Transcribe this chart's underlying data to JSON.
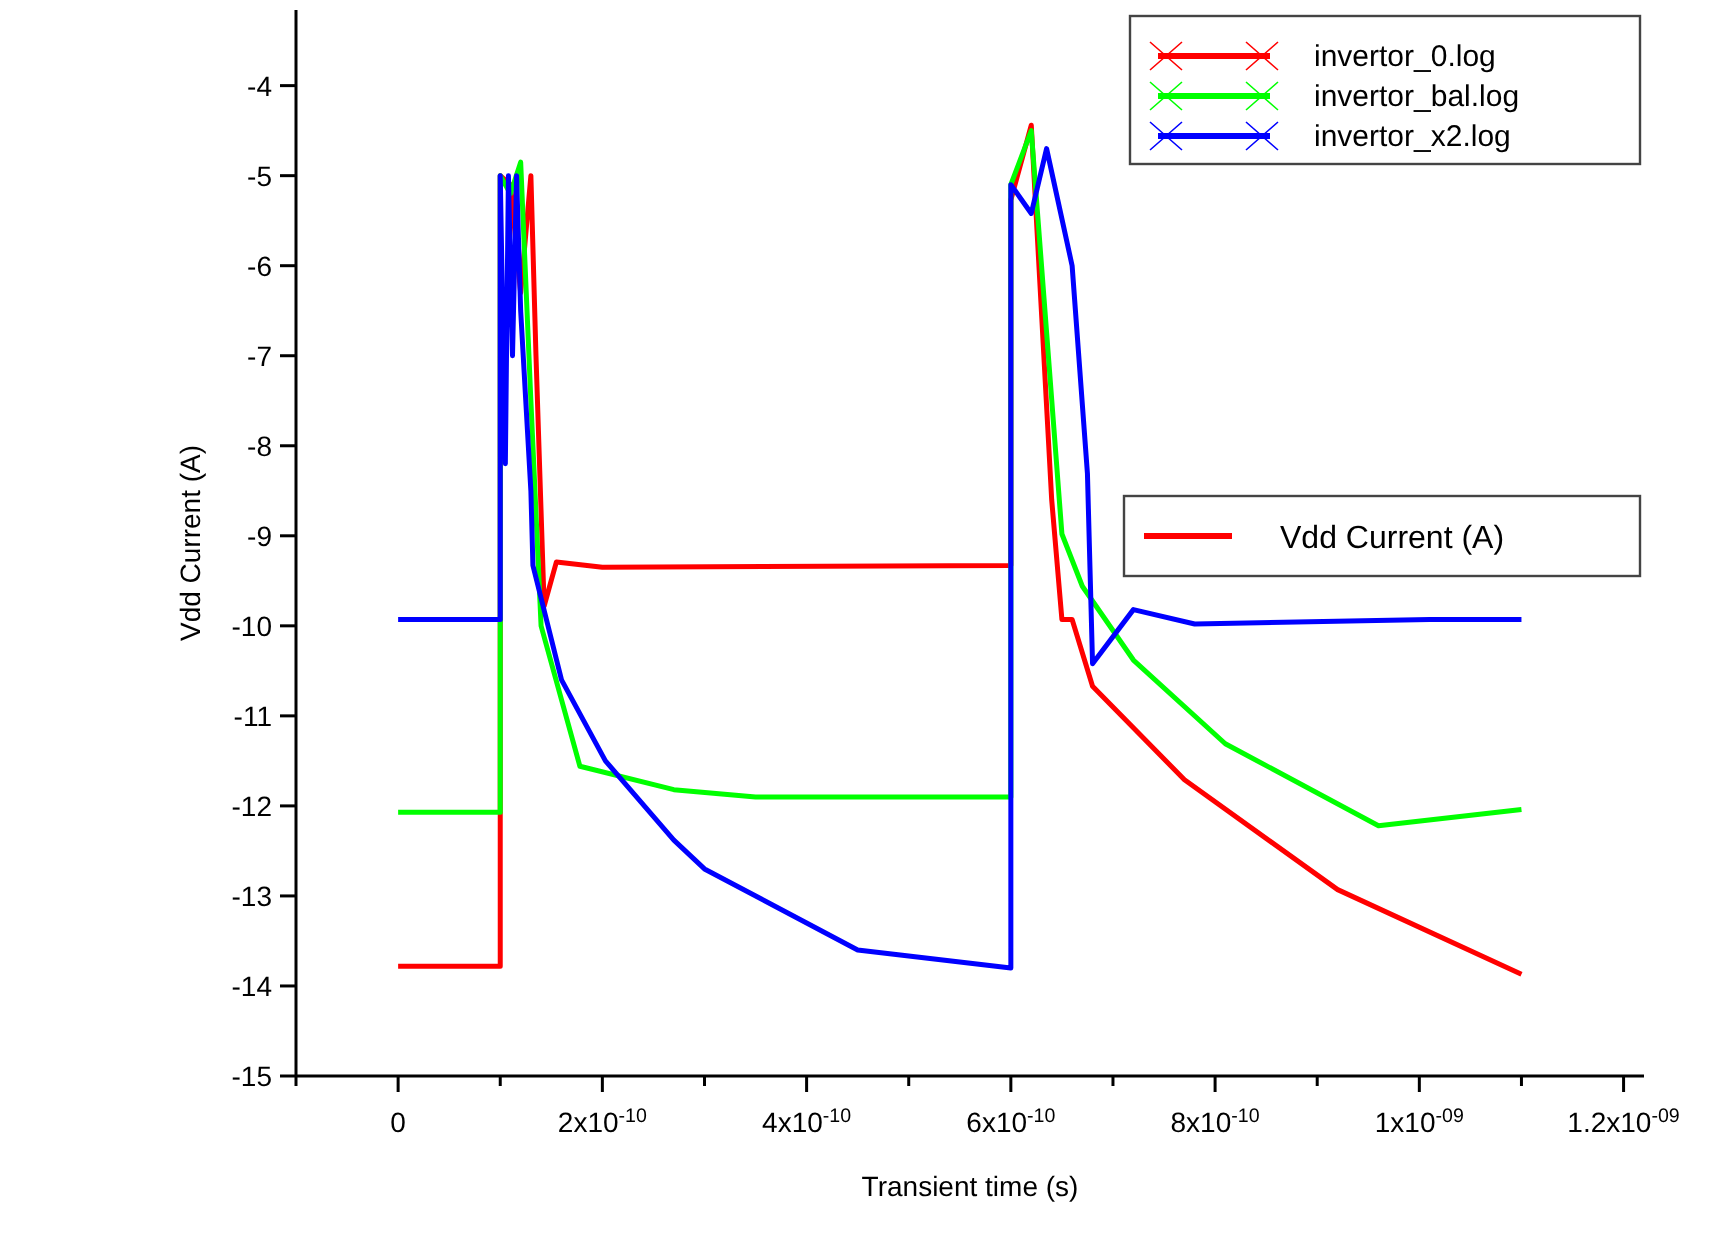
{
  "chart_data": {
    "type": "line",
    "xlabel": "Transient time (s)",
    "ylabel": "Vdd Current (A)",
    "xlim": [
      -1e-10,
      1.22e-09
    ],
    "ylim": [
      -15,
      -3.16
    ],
    "xticks": [
      {
        "value": -1e-10,
        "label": null
      },
      0,
      {
        "value": 1e-10,
        "label": null
      },
      {
        "value": 2e-10,
        "label": "2x10$^{-10}$"
      },
      {
        "value": 3e-10,
        "label": null
      },
      {
        "value": 4e-10,
        "label": "4x10$^{-10}$"
      },
      {
        "value": 5e-10,
        "label": null
      },
      {
        "value": 6e-10,
        "label": "6x10$^{-10}$"
      },
      {
        "value": 7e-10,
        "label": null
      },
      {
        "value": 8e-10,
        "label": "8x10$^{-10}$"
      },
      {
        "value": 9e-10,
        "label": null
      },
      {
        "value": 1e-09,
        "label": "1x10$^{-09}$"
      },
      {
        "value": 1.1e-09,
        "label": null
      },
      {
        "value": 1.2e-09,
        "label": "1.2x10$^{-09}$"
      }
    ],
    "yticks": [
      -15,
      -14,
      -13,
      -12,
      -11,
      -10,
      -9,
      -8,
      -7,
      -6,
      -5,
      -4
    ],
    "grid": false,
    "legend": "top right",
    "annotations": [
      "Vdd Current (A)"
    ],
    "series": [
      {
        "name": "invertor_0.log",
        "color": "#ff0000",
        "x": [
          0,
          1e-10,
          1e-10,
          1.1e-10,
          1.2e-10,
          1.3e-10,
          1.35e-10,
          1.43e-10,
          1.55e-10,
          2e-10,
          6e-10,
          6e-10,
          6.2e-10,
          6.4e-10,
          6.5e-10,
          6.6e-10,
          6.8e-10,
          7.7e-10,
          9.2e-10,
          1.1e-09
        ],
        "values": [
          -13.78,
          -13.78,
          -5.0,
          -5.1,
          -6.3,
          -5.0,
          -7.0,
          -9.78,
          -9.29,
          -9.35,
          -9.33,
          -5.27,
          -4.44,
          -8.6,
          -9.93,
          -9.93,
          -10.67,
          -11.71,
          -12.93,
          -13.87
        ]
      },
      {
        "name": "invertor_bal.log",
        "color": "#00ff00",
        "x": [
          0,
          1e-10,
          1e-10,
          1.1e-10,
          1.2e-10,
          1.3e-10,
          1.4e-10,
          1.78e-10,
          2.7e-10,
          3.5e-10,
          6e-10,
          6e-10,
          6.2e-10,
          6.5e-10,
          6.7e-10,
          7.2e-10,
          8.1e-10,
          9.6e-10,
          1.1e-09
        ],
        "values": [
          -12.07,
          -12.07,
          -5.0,
          -5.2,
          -4.85,
          -7.5,
          -10.0,
          -11.56,
          -11.82,
          -11.9,
          -11.9,
          -5.1,
          -4.5,
          -8.98,
          -9.56,
          -10.38,
          -11.31,
          -12.22,
          -12.04
        ]
      },
      {
        "name": "invertor_x2.log",
        "color": "#0000ff",
        "x": [
          0,
          1e-10,
          1e-10,
          1.05e-10,
          1.08e-10,
          1.12e-10,
          1.16e-10,
          1.2e-10,
          1.3e-10,
          1.32e-10,
          1.6e-10,
          2.03e-10,
          2.7e-10,
          3e-10,
          4.5e-10,
          6e-10,
          6e-10,
          6.2e-10,
          6.35e-10,
          6.6e-10,
          6.75e-10,
          6.8e-10,
          7.2e-10,
          7.8e-10,
          1.01e-09,
          1.1e-09
        ],
        "values": [
          -9.93,
          -9.93,
          -5.0,
          -8.2,
          -5.0,
          -7.0,
          -5.0,
          -6.5,
          -8.5,
          -9.33,
          -10.6,
          -11.5,
          -12.38,
          -12.7,
          -13.6,
          -13.8,
          -5.1,
          -5.42,
          -4.7,
          -6.0,
          -8.31,
          -10.42,
          -9.82,
          -9.98,
          -9.93,
          -9.93
        ]
      }
    ]
  }
}
